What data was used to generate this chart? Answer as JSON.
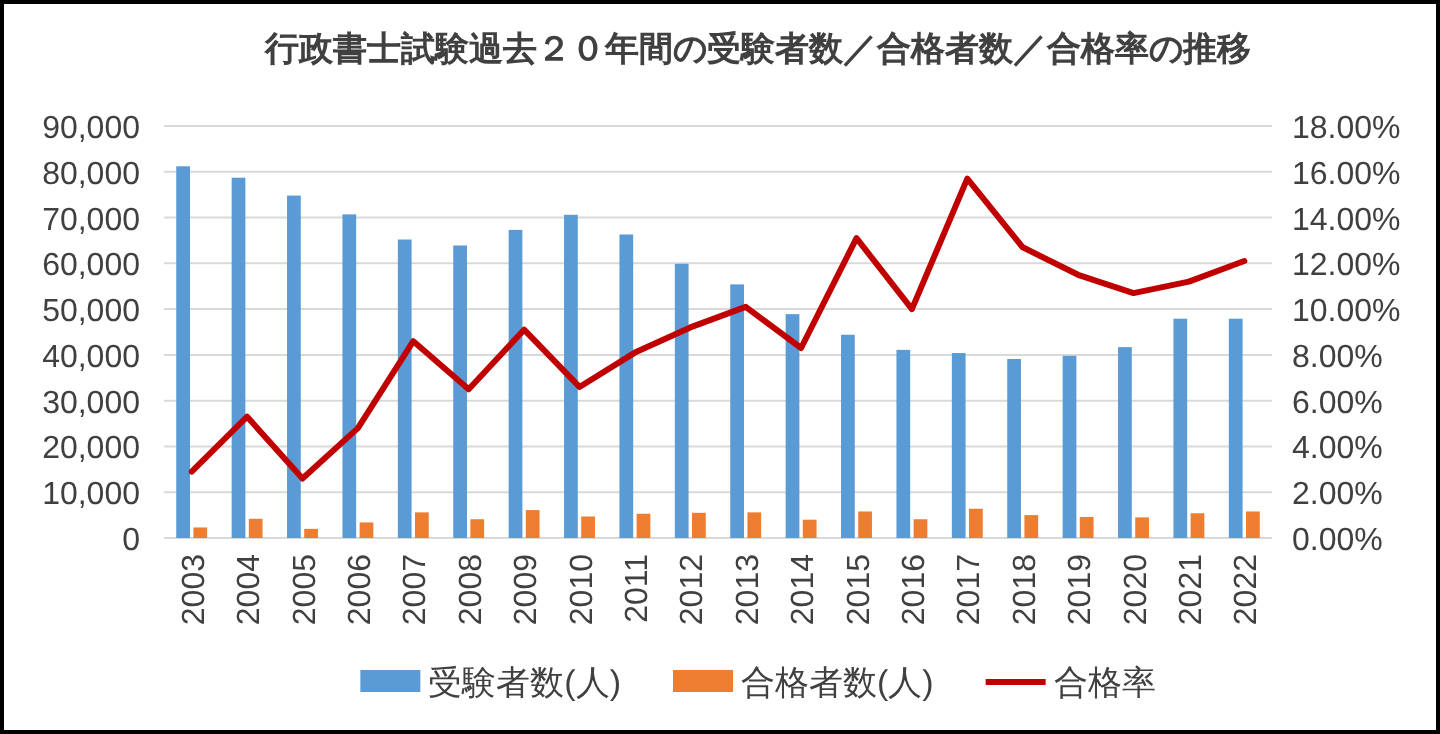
{
  "chart_data": {
    "type": "bar",
    "title": "行政書士試験過去２０年間の受験者数／合格者数／合格率の推移",
    "categories": [
      "2003",
      "2004",
      "2005",
      "2006",
      "2007",
      "2008",
      "2009",
      "2010",
      "2011",
      "2012",
      "2013",
      "2014",
      "2015",
      "2016",
      "2017",
      "2018",
      "2019",
      "2020",
      "2021",
      "2022"
    ],
    "series": [
      {
        "name": "受験者数(人)",
        "color": "#5b9bd5",
        "values": [
          81200,
          78700,
          74800,
          70700,
          65200,
          63900,
          67300,
          70600,
          66300,
          59900,
          55400,
          48900,
          44400,
          41100,
          40400,
          39100,
          39800,
          41700,
          47900,
          47900
        ]
      },
      {
        "name": "合格者数(人)",
        "color": "#ed7d31",
        "values": [
          2300,
          4200,
          2000,
          3400,
          5600,
          4100,
          6100,
          4700,
          5300,
          5500,
          5600,
          4000,
          5800,
          4100,
          6400,
          5000,
          4600,
          4500,
          5400,
          5800
        ]
      },
      {
        "name": "合格率",
        "type": "line",
        "axis": "y2",
        "color": "#c00000",
        "values": [
          2.9,
          5.3,
          2.6,
          4.8,
          8.6,
          6.5,
          9.1,
          6.6,
          8.1,
          9.2,
          10.1,
          8.3,
          13.1,
          10.0,
          15.7,
          12.7,
          11.5,
          10.7,
          11.2,
          12.1
        ]
      }
    ],
    "ylim": [
      0,
      90000
    ],
    "yticks": [
      0,
      {
        "value": 10000,
        "label": "10,000"
      },
      {
        "value": 20000,
        "label": "20,000"
      },
      {
        "value": 30000,
        "label": "30,000"
      },
      {
        "value": 40000,
        "label": "40,000"
      },
      {
        "value": 50000,
        "label": "50,000"
      },
      {
        "value": 60000,
        "label": "60,000"
      },
      {
        "value": 70000,
        "label": "70,000"
      },
      {
        "value": 80000,
        "label": "80,000"
      },
      {
        "value": 90000,
        "label": "90,000"
      }
    ],
    "y2lim": [
      0,
      18
    ],
    "y2ticks": [
      {
        "value": 0,
        "label": "0.00%"
      },
      {
        "value": 2,
        "label": "2.00%"
      },
      {
        "value": 4,
        "label": "4.00%"
      },
      {
        "value": 6,
        "label": "6.00%"
      },
      {
        "value": 8,
        "label": "8.00%"
      },
      {
        "value": 10,
        "label": "10.00%"
      },
      {
        "value": 12,
        "label": "12.00%"
      },
      {
        "value": 14,
        "label": "14.00%"
      },
      {
        "value": 16,
        "label": "16.00%"
      },
      {
        "value": 18,
        "label": "18.00%"
      }
    ],
    "grid": "y",
    "legend": "bottom"
  }
}
